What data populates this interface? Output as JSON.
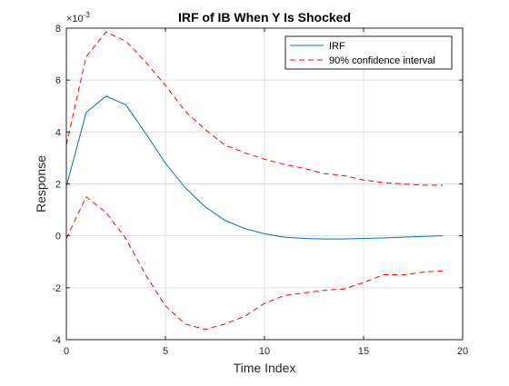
{
  "chart_data": {
    "type": "line",
    "title": "IRF of IB When Y Is Shocked",
    "xlabel": "Time Index",
    "ylabel": "Response",
    "xlim": [
      0,
      20
    ],
    "ylim": [
      -0.004,
      0.008
    ],
    "scale_label_base": "×10",
    "scale_label_exp": "-3",
    "xticks": [
      0,
      5,
      10,
      15,
      20
    ],
    "xtick_labels": [
      "0",
      "5",
      "10",
      "15",
      "20"
    ],
    "yticks": [
      -4,
      -2,
      0,
      2,
      4,
      6,
      8
    ],
    "ytick_labels": [
      "-4",
      "-2",
      "0",
      "2",
      "4",
      "6",
      "8"
    ],
    "grid": true,
    "legend_position": "top-right",
    "series": [
      {
        "name": "IRF",
        "color": "#0072BD",
        "style": "solid",
        "x": [
          0,
          1,
          2,
          3,
          4,
          5,
          6,
          7,
          8,
          9,
          10,
          11,
          12,
          13,
          14,
          15,
          16,
          17,
          18,
          19
        ],
        "values": [
          0.0019,
          0.00475,
          0.00538,
          0.00505,
          0.00395,
          0.0028,
          0.00185,
          0.00112,
          0.0006,
          0.00028,
          8e-05,
          -5e-05,
          -0.0001,
          -0.00012,
          -0.00012,
          -0.0001,
          -8e-05,
          -5e-05,
          -2e-05,
          0.0
        ]
      },
      {
        "name": "90% confidence interval",
        "color": "#FF0000",
        "style": "dashed",
        "x": [
          0,
          1,
          2,
          3,
          4,
          5,
          6,
          7,
          8,
          9,
          10,
          11,
          12,
          13,
          14,
          15,
          16,
          17,
          18,
          19
        ],
        "values": [
          0.0035,
          0.0069,
          0.00785,
          0.0075,
          0.0067,
          0.0058,
          0.0048,
          0.0041,
          0.0035,
          0.0032,
          0.00295,
          0.00275,
          0.0026,
          0.0024,
          0.00232,
          0.00215,
          0.00205,
          0.002,
          0.00195,
          0.00195
        ]
      },
      {
        "name": "",
        "color": "#FF0000",
        "style": "dashed",
        "x": [
          0,
          1,
          2,
          3,
          4,
          5,
          6,
          7,
          8,
          9,
          10,
          11,
          12,
          13,
          14,
          15,
          16,
          17,
          18,
          19
        ],
        "values": [
          -0.0001,
          0.0015,
          0.0009,
          -0.0001,
          -0.0015,
          -0.0027,
          -0.0034,
          -0.0036,
          -0.0034,
          -0.0031,
          -0.0026,
          -0.0023,
          -0.0022,
          -0.0021,
          -0.00205,
          -0.0018,
          -0.0015,
          -0.0015,
          -0.0014,
          -0.00135
        ]
      }
    ]
  }
}
